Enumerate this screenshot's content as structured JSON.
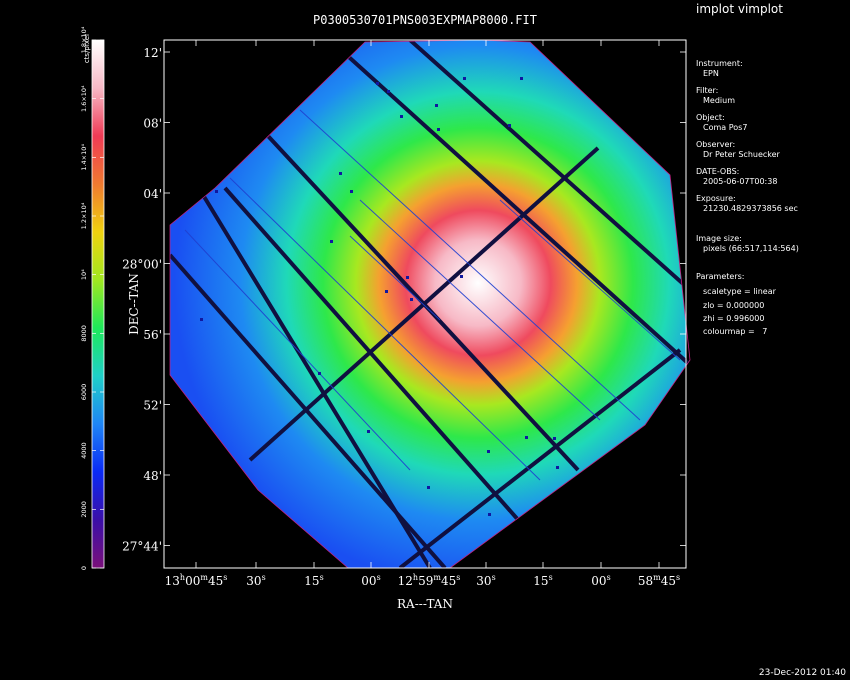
{
  "app_title": "implot vimplot",
  "timestamp": "23-Dec-2012 01:40",
  "chart_data": {
    "type": "heatmap",
    "title": "P0300530701PNS003EXPMAP8000.FIT",
    "xlabel": "RA---TAN",
    "ylabel": "DEC--TAN",
    "x_ticks": [
      {
        "base": "13",
        "h": "h",
        "mid": "00",
        "m": "m",
        "sec": "45",
        "s": "s"
      },
      {
        "base": "30",
        "s": "s"
      },
      {
        "base": "15",
        "s": "s"
      },
      {
        "base": "00",
        "s": "s"
      },
      {
        "base": "12",
        "h": "h",
        "mid": "59",
        "m": "m",
        "sec": "45",
        "s": "s"
      },
      {
        "base": "30",
        "s": "s"
      },
      {
        "base": "15",
        "s": "s"
      },
      {
        "base": "00",
        "s": "s"
      },
      {
        "base": "58",
        "m": "m",
        "sec": "45",
        "s": "s"
      }
    ],
    "y_ticks": [
      {
        "label": "12'"
      },
      {
        "label": "08'"
      },
      {
        "label": "04'"
      },
      {
        "label": "28°00'"
      },
      {
        "label": "56'"
      },
      {
        "label": "52'"
      },
      {
        "label": "48'"
      },
      {
        "label": "27°44'"
      }
    ],
    "colorbar": {
      "label": "cts/pixel",
      "ticks": [
        "0",
        "2000",
        "4000",
        "6000",
        "8000",
        "10⁴",
        "1.2×10⁴",
        "1.4×10⁴",
        "1.6×10⁴",
        "1.8×10⁴"
      ],
      "range": [
        0,
        18000
      ],
      "stops": [
        "#7a107a",
        "#3a0fa8",
        "#0a2af5",
        "#1f86f5",
        "#1fd0c8",
        "#1ee85a",
        "#a0e820",
        "#f0d20f",
        "#f07a30",
        "#ef3a55",
        "#f7b9c6",
        "#ffffff"
      ]
    },
    "grid": false
  },
  "sidebar": {
    "instrument_label": "Instrument:",
    "instrument_value": "EPN",
    "filter_label": "Filter:",
    "filter_value": "Medium",
    "object_label": "Object:",
    "object_value": "Coma Pos7",
    "observer_label": "Observer:",
    "observer_value": "Dr Peter Schuecker",
    "date_label": "DATE-OBS:",
    "date_value": "2005-06-07T00:38",
    "exposure_label": "Exposure:",
    "exposure_value": "21230.4829373856 sec",
    "image_size_label": "Image size:",
    "image_size_value": "pixels (66:517,114:564)",
    "parameters_label": "Parameters:",
    "param_scaletype": "scaletype = linear",
    "param_zlo": "zlo = 0.000000",
    "param_zhi": "zhi = 0.996000",
    "param_colourmap": "colourmap =   7"
  }
}
